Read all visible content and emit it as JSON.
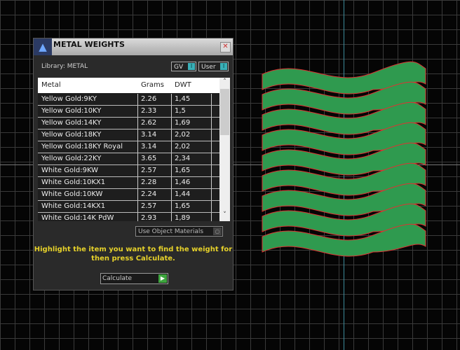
{
  "dialog": {
    "title": "METAL WEIGHTS",
    "library_label": "Library: METAL",
    "toggle_gv": "GV",
    "toggle_user": "User",
    "columns": [
      "Metal",
      "Grams",
      "DWT"
    ],
    "rows": [
      [
        "Yellow Gold:9KY",
        "2.26",
        "1,45"
      ],
      [
        "Yellow Gold:10KY",
        "2.33",
        "1,5"
      ],
      [
        "Yellow Gold:14KY",
        "2.62",
        "1,69"
      ],
      [
        "Yellow Gold:18KY",
        "3.14",
        "2,02"
      ],
      [
        "Yellow Gold:18KY Royal",
        "3.14",
        "2,02"
      ],
      [
        "Yellow Gold:22KY",
        "3.65",
        "2,34"
      ],
      [
        "White Gold:9KW",
        "2.57",
        "1,65"
      ],
      [
        "White Gold:10KX1",
        "2.28",
        "1,46"
      ],
      [
        "White Gold:10KW",
        "2.24",
        "1,44"
      ],
      [
        "White Gold:14KX1",
        "2.57",
        "1,65"
      ],
      [
        "White Gold:14K PdW",
        "2.93",
        "1,89"
      ]
    ],
    "use_object_materials": "Use Object Materials",
    "hint": "Highlight the item you want to find the weight for then press Calculate.",
    "calculate_label": "Calculate",
    "close": "✕"
  },
  "colors": {
    "hint": "#e6d12a",
    "ring": "#2f9a4f",
    "ring_edge": "#d33"
  }
}
